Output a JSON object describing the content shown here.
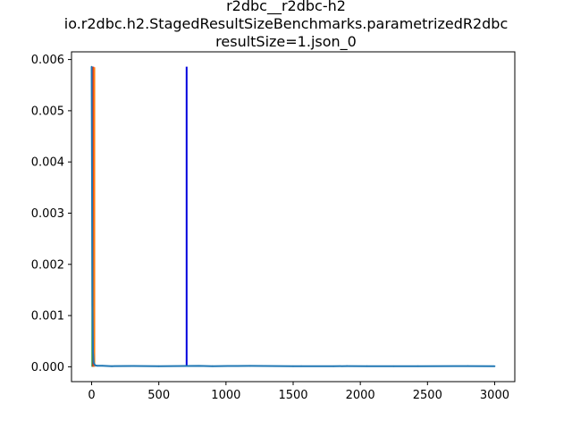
{
  "chart_data": {
    "type": "line",
    "title_lines": [
      "r2dbc__r2dbc-h2",
      "io.r2dbc.h2.StagedResultSizeBenchmarks.parametrizedR2dbc",
      "resultSize=1.json_0"
    ],
    "xlabel": "",
    "ylabel": "",
    "xlim": [
      -150,
      3150
    ],
    "ylim": [
      -0.00029,
      0.00615
    ],
    "x_ticks": [
      0,
      500,
      1000,
      1500,
      2000,
      2500,
      3000
    ],
    "x_tick_labels": [
      "0",
      "500",
      "1000",
      "1500",
      "2000",
      "2500",
      "3000"
    ],
    "y_ticks": [
      0.0,
      0.001,
      0.002,
      0.003,
      0.004,
      0.005,
      0.006
    ],
    "y_tick_labels": [
      "0.000",
      "0.001",
      "0.002",
      "0.003",
      "0.004",
      "0.005",
      "0.006"
    ],
    "grid": false,
    "legend": "none",
    "series": [
      {
        "color": "#0000dd",
        "kind": "vline",
        "x": 707,
        "y_range": [
          0.0,
          0.00586
        ]
      },
      {
        "color": "#1f9d3a",
        "kind": "vline",
        "x": 5,
        "y_range": [
          0.0,
          0.00586
        ]
      },
      {
        "color": "#d62728",
        "kind": "vline",
        "x": 12,
        "y_range": [
          0.0,
          0.00586
        ]
      },
      {
        "color": "#ff7f0e",
        "kind": "vline",
        "x": 20,
        "y_range": [
          0.0,
          0.00585
        ]
      },
      {
        "color": "#1f77b4",
        "kind": "line",
        "x": [
          0,
          3,
          6,
          10,
          15,
          25,
          40,
          80,
          150,
          310,
          500,
          800,
          900,
          1080,
          1180,
          1500,
          1560,
          1800,
          1900,
          2050,
          2250,
          2430,
          2800,
          3000
        ],
        "y": [
          0.00586,
          0.0035,
          0.0012,
          0.0003,
          8e-05,
          3e-05,
          2e-05,
          2e-05,
          1.2e-05,
          1.5e-05,
          1e-05,
          1.8e-05,
          1.2e-05,
          1.6e-05,
          1.8e-05,
          1e-05,
          1.2e-05,
          1e-05,
          1.4e-05,
          1.2e-05,
          1e-05,
          1.2e-05,
          1.4e-05,
          1e-05
        ]
      }
    ]
  }
}
